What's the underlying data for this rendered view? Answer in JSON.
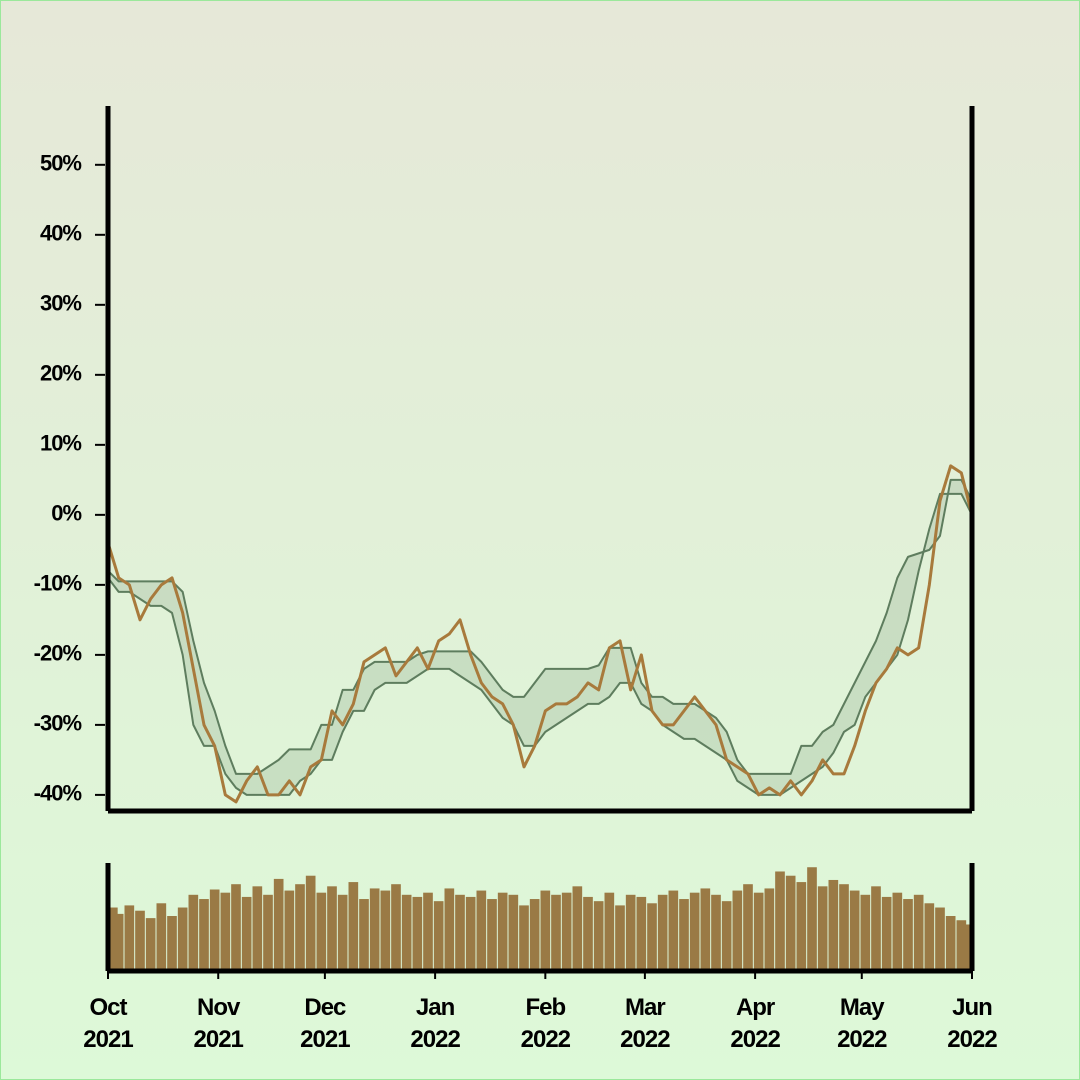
{
  "chart_data": [
    {
      "type": "line",
      "x": [
        0,
        3,
        6,
        9,
        12,
        15,
        18,
        21,
        24,
        27,
        30,
        33,
        36,
        39,
        42,
        45,
        48,
        51,
        54,
        57,
        60,
        63,
        66,
        69,
        72,
        75,
        78,
        81,
        84,
        87,
        90,
        93,
        96,
        99,
        102,
        105,
        108,
        111,
        114,
        117,
        120,
        123,
        126,
        129,
        132,
        135,
        138,
        141,
        144,
        147,
        150,
        153,
        156,
        159,
        162,
        165,
        168,
        171,
        174,
        177,
        180,
        183,
        186,
        189,
        192,
        195,
        198,
        201,
        204,
        207,
        210,
        213,
        216,
        219,
        222,
        225,
        228,
        231,
        234,
        237,
        240,
        243
      ],
      "xlim": [
        0,
        243
      ],
      "xticks": [
        {
          "value": 0,
          "label": "Oct 2021"
        },
        {
          "value": 31,
          "label": "Nov 2021"
        },
        {
          "value": 61,
          "label": "Dec 2021"
        },
        {
          "value": 92,
          "label": "Jan 2022"
        },
        {
          "value": 123,
          "label": "Feb 2022"
        },
        {
          "value": 151,
          "label": "Mar 2022"
        },
        {
          "value": 182,
          "label": "Apr 2022"
        },
        {
          "value": 212,
          "label": "May 2022"
        },
        {
          "value": 243,
          "label": "Jun 2022"
        }
      ],
      "ylim": [
        -42.3,
        58.4
      ],
      "yticks": [
        {
          "value": -40,
          "label": "-40%"
        },
        {
          "value": -30,
          "label": "-30%"
        },
        {
          "value": -20,
          "label": "-20%"
        },
        {
          "value": -10,
          "label": "-10%"
        },
        {
          "value": 0,
          "label": "0%"
        },
        {
          "value": 10,
          "label": "10%"
        },
        {
          "value": 20,
          "label": "20%"
        },
        {
          "value": 30,
          "label": "30%"
        },
        {
          "value": 40,
          "label": "40%"
        },
        {
          "value": 50,
          "label": "50%"
        }
      ],
      "band_color": "#5e7d5e",
      "series": [
        {
          "color": "#a87a3c",
          "values": [
            -4,
            -9,
            -10,
            -15,
            -12,
            -10,
            -9,
            -14,
            -22,
            -30,
            -33,
            -40,
            -41,
            -38,
            -36,
            -40,
            -40,
            -38,
            -40,
            -36,
            -35,
            -28,
            -30,
            -27,
            -21,
            -20,
            -19,
            -23,
            -21,
            -19,
            -22,
            -18,
            -17,
            -15,
            -20,
            -24,
            -26,
            -27,
            -30,
            -36,
            -33,
            -28,
            -27,
            -27,
            -26,
            -24,
            -25,
            -19,
            -18,
            -25,
            -20,
            -28,
            -30,
            -30,
            -28,
            -26,
            -28,
            -30,
            -35,
            -36,
            -37,
            -40,
            -39,
            -40,
            -38,
            -40,
            -38,
            -35,
            -37,
            -37,
            -33,
            -28,
            -24,
            -22,
            -19,
            -20,
            -19,
            -10,
            2,
            7,
            6,
            0
          ]
        },
        {
          "color": "#5e7d5e",
          "values": [
            -8,
            -9.5,
            -9.5,
            -9.5,
            -9.5,
            -9.5,
            -9.5,
            -11,
            -18,
            -24,
            -28,
            -33,
            -37,
            -37,
            -37,
            -36,
            -35,
            -33.5,
            -33.5,
            -33.5,
            -30,
            -30,
            -25,
            -25,
            -22,
            -21,
            -21,
            -21,
            -21,
            -20,
            -19.5,
            -19.5,
            -19.5,
            -19.5,
            -19.5,
            -21,
            -23,
            -25,
            -26,
            -26,
            -24,
            -22,
            -22,
            -22,
            -22,
            -22,
            -21.5,
            -19,
            -19,
            -19,
            -24,
            -26,
            -26,
            -27,
            -27,
            -27,
            -28,
            -29,
            -31,
            -35,
            -37,
            -37,
            -37,
            -37,
            -37,
            -33,
            -33,
            -31,
            -30,
            -27,
            -24,
            -21,
            -18,
            -14,
            -9,
            -6,
            -5.5,
            -5,
            -3,
            5,
            5,
            2
          ]
        },
        {
          "color": "#5e7d5e",
          "values": [
            -9,
            -11,
            -11,
            -12,
            -13,
            -13,
            -14,
            -20,
            -30,
            -33,
            -33,
            -37,
            -39,
            -40,
            -40,
            -40,
            -40,
            -40,
            -38,
            -37,
            -35,
            -35,
            -31,
            -28,
            -28,
            -25,
            -24,
            -24,
            -24,
            -23,
            -22,
            -22,
            -22,
            -23,
            -24,
            -25,
            -27,
            -29,
            -30,
            -33,
            -33,
            -31,
            -30,
            -29,
            -28,
            -27,
            -27,
            -26,
            -24,
            -24,
            -27,
            -28,
            -30,
            -31,
            -32,
            -32,
            -33,
            -34,
            -35,
            -38,
            -39,
            -40,
            -40,
            -40,
            -39,
            -38,
            -37,
            -36,
            -34,
            -31,
            -30,
            -26,
            -24,
            -22,
            -20,
            -15,
            -8,
            -2,
            3,
            3,
            3,
            0
          ]
        }
      ]
    },
    {
      "type": "bar",
      "x": [
        0,
        3,
        6,
        9,
        12,
        15,
        18,
        21,
        24,
        27,
        30,
        33,
        36,
        39,
        42,
        45,
        48,
        51,
        54,
        57,
        60,
        63,
        66,
        69,
        72,
        75,
        78,
        81,
        84,
        87,
        90,
        93,
        96,
        99,
        102,
        105,
        108,
        111,
        114,
        117,
        120,
        123,
        126,
        129,
        132,
        135,
        138,
        141,
        144,
        147,
        150,
        153,
        156,
        159,
        162,
        165,
        168,
        171,
        174,
        177,
        180,
        183,
        186,
        189,
        192,
        195,
        198,
        201,
        204,
        207,
        210,
        213,
        216,
        219,
        222,
        225,
        228,
        231,
        234,
        237,
        240,
        243
      ],
      "xlim": [
        0,
        243
      ],
      "ylim": [
        0,
        100
      ],
      "color": "#9a7a45",
      "values": [
        58,
        52,
        60,
        55,
        48,
        62,
        50,
        58,
        70,
        66,
        75,
        72,
        80,
        68,
        78,
        70,
        85,
        74,
        80,
        88,
        72,
        78,
        70,
        82,
        66,
        76,
        74,
        80,
        70,
        68,
        72,
        64,
        76,
        70,
        68,
        74,
        66,
        72,
        70,
        60,
        66,
        74,
        70,
        72,
        78,
        68,
        64,
        72,
        60,
        70,
        68,
        62,
        70,
        74,
        66,
        72,
        76,
        70,
        64,
        74,
        80,
        72,
        76,
        92,
        88,
        82,
        96,
        78,
        84,
        80,
        74,
        70,
        78,
        68,
        72,
        66,
        70,
        62,
        58,
        50,
        46,
        42
      ]
    }
  ]
}
